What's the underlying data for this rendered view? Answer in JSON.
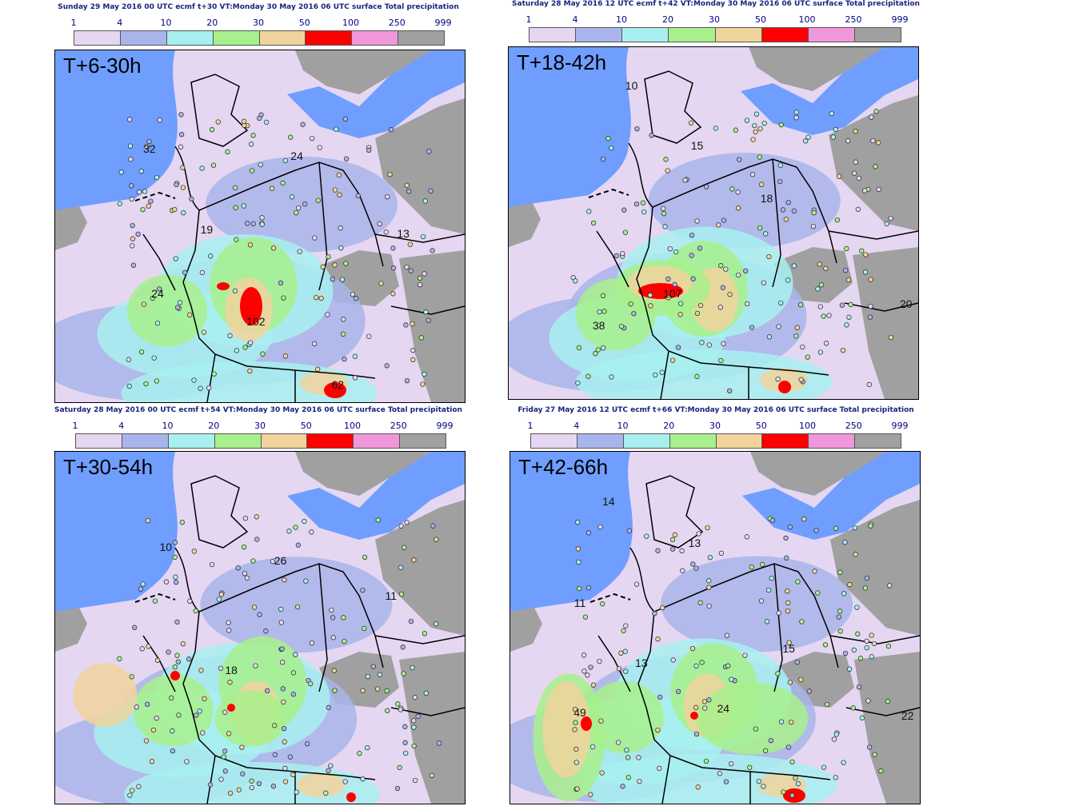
{
  "legend": {
    "labels": [
      "1",
      "4",
      "10",
      "20",
      "30",
      "50",
      "100",
      "250",
      "999"
    ],
    "colors": [
      "#e5d7f2",
      "#a9b5ea",
      "#a8f0f0",
      "#a8f08c",
      "#f1d49c",
      "#ff0000",
      "#f097dc",
      "#a0a0a0"
    ]
  },
  "panels": [
    {
      "id": "p1",
      "title": "Sunday 29 May 2016 00 UTC ecmf t+30 VT:Monday 30 May 2016 06 UTC surface  Total precipitation",
      "lead_label": "T+6-30h",
      "values": [
        {
          "text": "32"
        },
        {
          "text": "24"
        },
        {
          "text": "19"
        },
        {
          "text": "13"
        },
        {
          "text": "24"
        },
        {
          "text": "102"
        },
        {
          "text": "62"
        }
      ]
    },
    {
      "id": "p2",
      "title": "Saturday 28 May 2016 12 UTC ecmf t+42 VT:Monday 30 May 2016 06 UTC surface  Total precipitation",
      "lead_label": "T+18-42h",
      "values": [
        {
          "text": "10"
        },
        {
          "text": "15"
        },
        {
          "text": "18"
        },
        {
          "text": "107"
        },
        {
          "text": "38"
        },
        {
          "text": "20"
        }
      ]
    },
    {
      "id": "p3",
      "title": "Saturday 28 May 2016 00 UTC ecmf t+54 VT:Monday 30 May 2016 06 UTC surface  Total precipitation",
      "lead_label": "T+30-54h",
      "values": [
        {
          "text": "10"
        },
        {
          "text": "26"
        },
        {
          "text": "11"
        },
        {
          "text": "18"
        }
      ]
    },
    {
      "id": "p4",
      "title": "Friday 27 May 2016 12 UTC ecmf t+66 VT:Monday 30 May 2016 06 UTC surface  Total precipitation",
      "lead_label": "T+42-66h",
      "values": [
        {
          "text": "14"
        },
        {
          "text": "13"
        },
        {
          "text": "11"
        },
        {
          "text": "15"
        },
        {
          "text": "13"
        },
        {
          "text": "49"
        },
        {
          "text": "24"
        },
        {
          "text": "22"
        }
      ]
    }
  ]
}
